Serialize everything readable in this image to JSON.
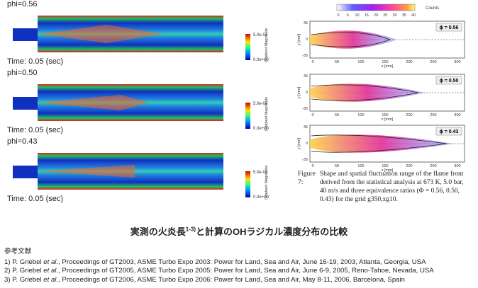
{
  "simulations": [
    {
      "label": "phi=0.56",
      "time": "Time: 0.05 (sec)",
      "colorbar": {
        "max": "5.0e-02",
        "min": "0.0e+00",
        "title": "Gradient Magnitude"
      }
    },
    {
      "label": "phi=0.50",
      "time": "Time: 0.05 (sec)",
      "colorbar": {
        "max": "5.0e-02",
        "min": "0.0e+00",
        "title": "Gradient Magnitude"
      }
    },
    {
      "label": "phi=0.43",
      "time": "Time: 0.05 (sec)",
      "colorbar": {
        "max": "5.0e-02",
        "min": "0.0e+00",
        "title": "Gradient Magnitude"
      }
    }
  ],
  "counts_bar": {
    "title": "Counts",
    "ticks": [
      "0",
      "5",
      "10",
      "15",
      "20",
      "25",
      "30",
      "35",
      "40"
    ]
  },
  "plots": [
    {
      "label": "ϕ = 0.56"
    },
    {
      "label": "ϕ = 0.50"
    },
    {
      "label": "ϕ = 0.43"
    }
  ],
  "plot_axes": {
    "yticks": [
      "35",
      "0",
      "-35"
    ],
    "xticks": [
      "0",
      "50",
      "100",
      "150",
      "200",
      "250",
      "300"
    ],
    "ylabel": "y [mm]",
    "xlabel": "x [mm]"
  },
  "caption": {
    "number": "Figure 7:",
    "text": "Shape and spatial fluctuation range of the flame front derived from the statistical analysis at 673 K, 5.0 bar, 40 m/s and three equivalence ratios (Φ = 0.56, 0.50, 0.43) for the grid g350,xg10."
  },
  "title": {
    "main": "実測の火炎長",
    "sup": "1-3)",
    "rest": "と計算のOHラジカル濃度分布の比較"
  },
  "references": {
    "heading": "参考文献",
    "items": [
      {
        "prefix": "1) P. Griebel ",
        "etal": "et al.",
        "rest": ", Proceedings of GT2003, ASME Turbo Expo 2003: Power for Land, Sea and Air,  June 16-19, 2003, Atlanta, Georgia, USA"
      },
      {
        "prefix": "2) P. Griebel ",
        "etal": "et al.",
        "rest": ", Proceedings of GT2005, ASME Turbo Expo 2005: Power for Land, Sea and Air,  June 6-9, 2005, Reno-Tahoe, Nevada, USA"
      },
      {
        "prefix": "3) P. Griebel ",
        "etal": "et al.",
        "rest": ", Proceedings of GT2006, ASME Turbo Expo 2006: Power for Land, Sea and Air,  May 8-11, 2006, Barcelona, Spain"
      }
    ]
  }
}
